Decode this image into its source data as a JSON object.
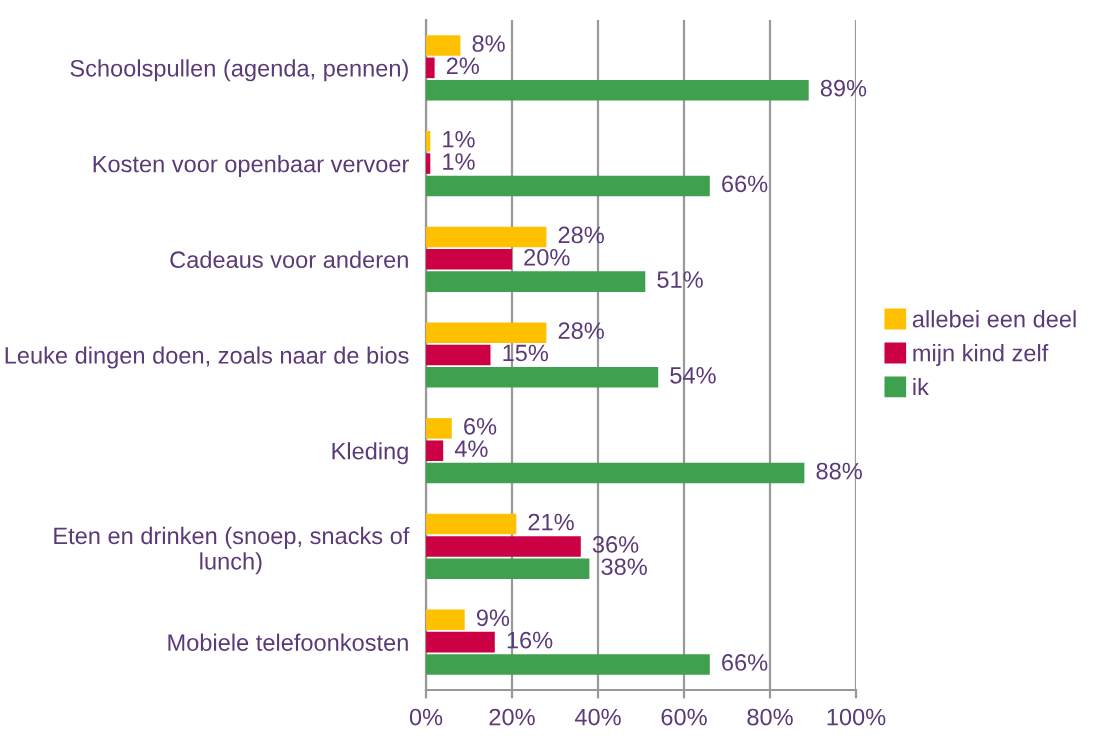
{
  "chart_data": {
    "type": "bar",
    "orientation": "horizontal",
    "categories": [
      "Schoolspullen (agenda, pennen)",
      "Kosten voor openbaar vervoer",
      "Cadeaus voor anderen",
      "Leuke dingen doen, zoals naar de bios",
      "Kleding",
      "Eten en drinken (snoep, snacks of\nlunch)",
      "Mobiele telefoonkosten"
    ],
    "series": [
      {
        "name": "allebei een deel",
        "color": "#ffc000",
        "values": [
          8,
          1,
          28,
          28,
          6,
          21,
          9
        ],
        "value_labels": [
          "8%",
          "1%",
          "28%",
          "28%",
          "6%",
          "21%",
          "9%"
        ]
      },
      {
        "name": "mijn kind zelf",
        "color": "#cc0044",
        "values": [
          2,
          1,
          20,
          15,
          4,
          36,
          16
        ],
        "value_labels": [
          "2%",
          "1%",
          "20%",
          "15%",
          "4%",
          "36%",
          "16%"
        ]
      },
      {
        "name": "ik",
        "color": "#3fa14f",
        "values": [
          89,
          66,
          51,
          54,
          88,
          38,
          66
        ],
        "value_labels": [
          "89%",
          "66%",
          "51%",
          "54%",
          "88%",
          "38%",
          "66%"
        ]
      }
    ],
    "xlim": [
      0,
      100
    ],
    "xticks": [
      {
        "value": 0,
        "label": "0%"
      },
      {
        "value": 20,
        "label": "20%"
      },
      {
        "value": 40,
        "label": "40%"
      },
      {
        "value": 60,
        "label": "60%"
      },
      {
        "value": 80,
        "label": "80%"
      },
      {
        "value": 100,
        "label": "100%"
      }
    ],
    "grid": "x",
    "legend": "right"
  }
}
